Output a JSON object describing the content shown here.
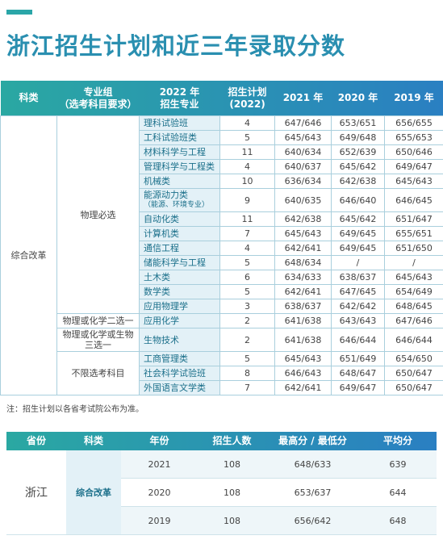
{
  "title": "浙江招生计划和近三年录取分数",
  "table1": {
    "header": [
      [
        "科类"
      ],
      [
        "专业组",
        "（选考科目要求）"
      ],
      [
        "2022 年",
        "招生专业"
      ],
      [
        "招生计划",
        "(2022)"
      ],
      [
        "2021 年"
      ],
      [
        "2020 年"
      ],
      [
        "2019 年"
      ]
    ],
    "category": "综合改革",
    "groups": [
      {
        "label": [
          "物理必选"
        ],
        "rows": [
          {
            "major": "理科试验班",
            "plan": 4,
            "scores": [
              "647/646",
              "653/651",
              "656/655"
            ]
          },
          {
            "major": "工科试验班类",
            "plan": 5,
            "scores": [
              "645/643",
              "649/648",
              "655/653"
            ]
          },
          {
            "major": "材料科学与工程",
            "plan": 11,
            "scores": [
              "640/634",
              "652/639",
              "650/646"
            ]
          },
          {
            "major": "管理科学与工程类",
            "plan": 4,
            "scores": [
              "640/637",
              "645/642",
              "649/647"
            ]
          },
          {
            "major": "机械类",
            "plan": 10,
            "scores": [
              "636/634",
              "642/638",
              "645/643"
            ]
          },
          {
            "major": "能源动力类",
            "note": "（能源、环境专业）",
            "plan": 9,
            "scores": [
              "640/635",
              "646/640",
              "646/645"
            ]
          },
          {
            "major": "自动化类",
            "plan": 11,
            "scores": [
              "642/638",
              "645/642",
              "651/647"
            ]
          },
          {
            "major": "计算机类",
            "plan": 7,
            "scores": [
              "645/643",
              "649/645",
              "655/651"
            ]
          },
          {
            "major": "通信工程",
            "plan": 4,
            "scores": [
              "642/641",
              "649/645",
              "651/650"
            ]
          },
          {
            "major": "储能科学与工程",
            "plan": 5,
            "scores": [
              "648/634",
              "/",
              "/"
            ]
          },
          {
            "major": "土木类",
            "plan": 6,
            "scores": [
              "634/633",
              "638/637",
              "645/643"
            ]
          },
          {
            "major": "数学类",
            "plan": 5,
            "scores": [
              "642/641",
              "647/645",
              "654/649"
            ]
          },
          {
            "major": "应用物理学",
            "plan": 3,
            "scores": [
              "638/637",
              "642/642",
              "648/645"
            ]
          }
        ]
      },
      {
        "label": [
          "物理或化学二选一"
        ],
        "rows": [
          {
            "major": "应用化学",
            "plan": 2,
            "scores": [
              "641/638",
              "643/643",
              "647/646"
            ]
          }
        ]
      },
      {
        "label": [
          "物理或化学或生物",
          "三选一"
        ],
        "rows": [
          {
            "major": "生物技术",
            "plan": 2,
            "scores": [
              "641/638",
              "646/644",
              "646/644"
            ]
          }
        ]
      },
      {
        "label": [
          "不限选考科目"
        ],
        "rows": [
          {
            "major": "工商管理类",
            "plan": 5,
            "scores": [
              "645/643",
              "651/649",
              "654/650"
            ]
          },
          {
            "major": "社会科学试验班",
            "plan": 8,
            "scores": [
              "646/643",
              "648/647",
              "650/647"
            ]
          },
          {
            "major": "外国语言文学类",
            "plan": 7,
            "scores": [
              "642/641",
              "649/647",
              "650/647"
            ]
          }
        ]
      }
    ]
  },
  "note": "注：招生计划以各省考试院公布为准。",
  "table2": {
    "header": [
      "省份",
      "科类",
      "年份",
      "招生人数",
      "最高分 / 最低分",
      "平均分"
    ],
    "province": "浙江",
    "category": "综合改革",
    "rows": [
      [
        2021,
        108,
        "648/633",
        639
      ],
      [
        2020,
        108,
        "653/637",
        644
      ],
      [
        2019,
        108,
        "656/642",
        648
      ]
    ]
  }
}
